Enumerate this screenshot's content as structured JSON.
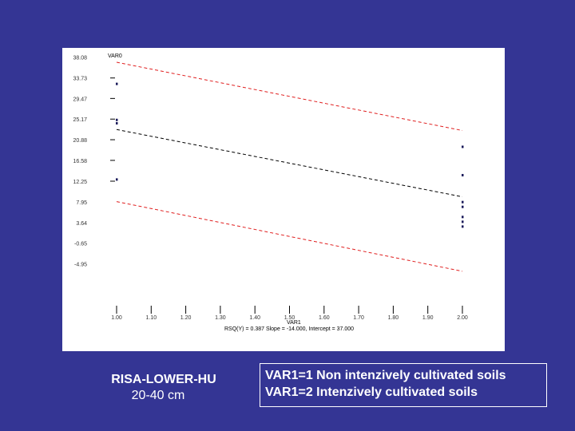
{
  "chart_data": {
    "type": "scatter",
    "title": "",
    "xlabel": "VAR1",
    "ylabel": "VAR0",
    "xlim": [
      1.0,
      2.0
    ],
    "ylim": [
      -14.0,
      38.0
    ],
    "x_ticks": [
      "1.00",
      "1.10",
      "1.20",
      "1.30",
      "1.40",
      "1.50",
      "1.60",
      "1.70",
      "1.80",
      "1.90",
      "2.00"
    ],
    "y_ticks": [
      "38.08",
      "33.73",
      "29.47",
      "25.17",
      "20.88",
      "16.58",
      "12.25",
      "7.95",
      "3.64",
      "-0.65",
      "-4.95"
    ],
    "y_tick_values": [
      38.08,
      33.73,
      29.47,
      25.17,
      20.88,
      16.58,
      12.25,
      7.95,
      3.64,
      -0.65,
      -4.95
    ],
    "footer": "RSQ(Y) = 0.387 Slope = -14.000, Intercept = 37.000",
    "points": [
      {
        "x": 1.0,
        "y": 32.5
      },
      {
        "x": 1.0,
        "y": 25.0
      },
      {
        "x": 1.0,
        "y": 24.3
      },
      {
        "x": 1.0,
        "y": 12.6
      },
      {
        "x": 2.0,
        "y": 19.4
      },
      {
        "x": 2.0,
        "y": 13.5
      },
      {
        "x": 2.0,
        "y": 7.9
      },
      {
        "x": 2.0,
        "y": 6.9
      },
      {
        "x": 2.0,
        "y": 4.8
      },
      {
        "x": 2.0,
        "y": 3.8
      },
      {
        "x": 2.0,
        "y": 2.8
      }
    ],
    "lines": [
      {
        "role": "fit",
        "color": "#000000",
        "x": [
          1.0,
          2.0
        ],
        "y": [
          23.0,
          9.0
        ]
      },
      {
        "role": "upper confidence",
        "color": "#e02020",
        "x": [
          1.0,
          2.0
        ],
        "y": [
          37.0,
          22.8
        ]
      },
      {
        "role": "lower confidence",
        "color": "#e02020",
        "x": [
          1.0,
          2.0
        ],
        "y": [
          8.0,
          -6.5
        ]
      }
    ],
    "axis_color": "#000000"
  },
  "captions": {
    "site": "RISA-LOWER-HU",
    "depth": "20-40 cm"
  },
  "legend": {
    "line1": "VAR1=1 Non intenzively cultivated soils",
    "line2": "VAR1=2 Intenzively cultivated  soils"
  },
  "colors": {
    "background": "#343594",
    "panel": "#ffffff",
    "text": "#ffffff"
  }
}
